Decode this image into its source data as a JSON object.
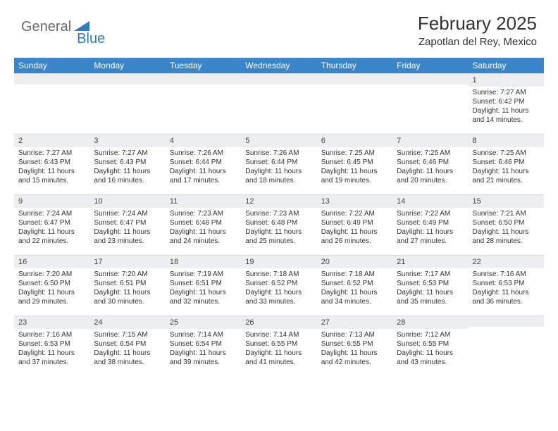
{
  "logo": {
    "general": "General",
    "blue": "Blue"
  },
  "title": "February 2025",
  "location": "Zapotlan del Rey, Mexico",
  "colors": {
    "header_bg": "#3a85c9",
    "header_text": "#ffffff",
    "daynum_bg": "#eceef0",
    "body_text": "#333333",
    "logo_gray": "#6a6a6a",
    "logo_blue": "#2f7bbf",
    "page_bg": "#ffffff"
  },
  "day_headers": [
    "Sunday",
    "Monday",
    "Tuesday",
    "Wednesday",
    "Thursday",
    "Friday",
    "Saturday"
  ],
  "weeks": [
    [
      {
        "n": "",
        "sunrise": "",
        "sunset": "",
        "daylight": ""
      },
      {
        "n": "",
        "sunrise": "",
        "sunset": "",
        "daylight": ""
      },
      {
        "n": "",
        "sunrise": "",
        "sunset": "",
        "daylight": ""
      },
      {
        "n": "",
        "sunrise": "",
        "sunset": "",
        "daylight": ""
      },
      {
        "n": "",
        "sunrise": "",
        "sunset": "",
        "daylight": ""
      },
      {
        "n": "",
        "sunrise": "",
        "sunset": "",
        "daylight": ""
      },
      {
        "n": "1",
        "sunrise": "Sunrise: 7:27 AM",
        "sunset": "Sunset: 6:42 PM",
        "daylight": "Daylight: 11 hours and 14 minutes."
      }
    ],
    [
      {
        "n": "2",
        "sunrise": "Sunrise: 7:27 AM",
        "sunset": "Sunset: 6:43 PM",
        "daylight": "Daylight: 11 hours and 15 minutes."
      },
      {
        "n": "3",
        "sunrise": "Sunrise: 7:27 AM",
        "sunset": "Sunset: 6:43 PM",
        "daylight": "Daylight: 11 hours and 16 minutes."
      },
      {
        "n": "4",
        "sunrise": "Sunrise: 7:26 AM",
        "sunset": "Sunset: 6:44 PM",
        "daylight": "Daylight: 11 hours and 17 minutes."
      },
      {
        "n": "5",
        "sunrise": "Sunrise: 7:26 AM",
        "sunset": "Sunset: 6:44 PM",
        "daylight": "Daylight: 11 hours and 18 minutes."
      },
      {
        "n": "6",
        "sunrise": "Sunrise: 7:25 AM",
        "sunset": "Sunset: 6:45 PM",
        "daylight": "Daylight: 11 hours and 19 minutes."
      },
      {
        "n": "7",
        "sunrise": "Sunrise: 7:25 AM",
        "sunset": "Sunset: 6:46 PM",
        "daylight": "Daylight: 11 hours and 20 minutes."
      },
      {
        "n": "8",
        "sunrise": "Sunrise: 7:25 AM",
        "sunset": "Sunset: 6:46 PM",
        "daylight": "Daylight: 11 hours and 21 minutes."
      }
    ],
    [
      {
        "n": "9",
        "sunrise": "Sunrise: 7:24 AM",
        "sunset": "Sunset: 6:47 PM",
        "daylight": "Daylight: 11 hours and 22 minutes."
      },
      {
        "n": "10",
        "sunrise": "Sunrise: 7:24 AM",
        "sunset": "Sunset: 6:47 PM",
        "daylight": "Daylight: 11 hours and 23 minutes."
      },
      {
        "n": "11",
        "sunrise": "Sunrise: 7:23 AM",
        "sunset": "Sunset: 6:48 PM",
        "daylight": "Daylight: 11 hours and 24 minutes."
      },
      {
        "n": "12",
        "sunrise": "Sunrise: 7:23 AM",
        "sunset": "Sunset: 6:48 PM",
        "daylight": "Daylight: 11 hours and 25 minutes."
      },
      {
        "n": "13",
        "sunrise": "Sunrise: 7:22 AM",
        "sunset": "Sunset: 6:49 PM",
        "daylight": "Daylight: 11 hours and 26 minutes."
      },
      {
        "n": "14",
        "sunrise": "Sunrise: 7:22 AM",
        "sunset": "Sunset: 6:49 PM",
        "daylight": "Daylight: 11 hours and 27 minutes."
      },
      {
        "n": "15",
        "sunrise": "Sunrise: 7:21 AM",
        "sunset": "Sunset: 6:50 PM",
        "daylight": "Daylight: 11 hours and 28 minutes."
      }
    ],
    [
      {
        "n": "16",
        "sunrise": "Sunrise: 7:20 AM",
        "sunset": "Sunset: 6:50 PM",
        "daylight": "Daylight: 11 hours and 29 minutes."
      },
      {
        "n": "17",
        "sunrise": "Sunrise: 7:20 AM",
        "sunset": "Sunset: 6:51 PM",
        "daylight": "Daylight: 11 hours and 30 minutes."
      },
      {
        "n": "18",
        "sunrise": "Sunrise: 7:19 AM",
        "sunset": "Sunset: 6:51 PM",
        "daylight": "Daylight: 11 hours and 32 minutes."
      },
      {
        "n": "19",
        "sunrise": "Sunrise: 7:18 AM",
        "sunset": "Sunset: 6:52 PM",
        "daylight": "Daylight: 11 hours and 33 minutes."
      },
      {
        "n": "20",
        "sunrise": "Sunrise: 7:18 AM",
        "sunset": "Sunset: 6:52 PM",
        "daylight": "Daylight: 11 hours and 34 minutes."
      },
      {
        "n": "21",
        "sunrise": "Sunrise: 7:17 AM",
        "sunset": "Sunset: 6:53 PM",
        "daylight": "Daylight: 11 hours and 35 minutes."
      },
      {
        "n": "22",
        "sunrise": "Sunrise: 7:16 AM",
        "sunset": "Sunset: 6:53 PM",
        "daylight": "Daylight: 11 hours and 36 minutes."
      }
    ],
    [
      {
        "n": "23",
        "sunrise": "Sunrise: 7:16 AM",
        "sunset": "Sunset: 6:53 PM",
        "daylight": "Daylight: 11 hours and 37 minutes."
      },
      {
        "n": "24",
        "sunrise": "Sunrise: 7:15 AM",
        "sunset": "Sunset: 6:54 PM",
        "daylight": "Daylight: 11 hours and 38 minutes."
      },
      {
        "n": "25",
        "sunrise": "Sunrise: 7:14 AM",
        "sunset": "Sunset: 6:54 PM",
        "daylight": "Daylight: 11 hours and 39 minutes."
      },
      {
        "n": "26",
        "sunrise": "Sunrise: 7:14 AM",
        "sunset": "Sunset: 6:55 PM",
        "daylight": "Daylight: 11 hours and 41 minutes."
      },
      {
        "n": "27",
        "sunrise": "Sunrise: 7:13 AM",
        "sunset": "Sunset: 6:55 PM",
        "daylight": "Daylight: 11 hours and 42 minutes."
      },
      {
        "n": "28",
        "sunrise": "Sunrise: 7:12 AM",
        "sunset": "Sunset: 6:55 PM",
        "daylight": "Daylight: 11 hours and 43 minutes."
      },
      {
        "n": "",
        "sunrise": "",
        "sunset": "",
        "daylight": ""
      }
    ]
  ]
}
